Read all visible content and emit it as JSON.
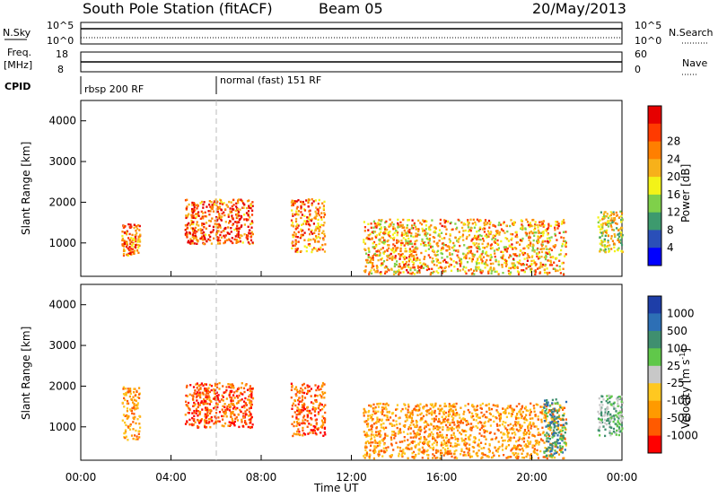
{
  "header": {
    "station": "South Pole Station (fitACF)",
    "beam": "Beam 05",
    "date": "20/May/2013"
  },
  "top_panels": {
    "nsky_label": "N.Sky",
    "nsky_ticks": [
      "10^5",
      "10^0"
    ],
    "nsearch_label": "N.Search",
    "nsearch_ticks": [
      "10^5",
      "10^0"
    ],
    "freq_label_1": "Freq.",
    "freq_label_2": "[MHz]",
    "freq_ticks": [
      "18",
      "8"
    ],
    "nave_label": "Nave",
    "nave_ticks": [
      "60",
      "0"
    ],
    "cpid_label": "CPID",
    "cpid_segments": [
      {
        "label": "rbsp 200 RF",
        "start_hour": 0
      },
      {
        "label": "normal (fast) 151 RF",
        "start_hour": 6
      }
    ]
  },
  "colors": {
    "power_scale": [
      "#0000ff",
      "#2a4fb8",
      "#3d9a6e",
      "#7fd04a",
      "#f3f318",
      "#f7b11a",
      "#ff7f00",
      "#ff3a00",
      "#e60000"
    ],
    "velocity_scale": [
      "#1e3ea8",
      "#2d6fb5",
      "#3f8f6f",
      "#60c84a",
      "#c8c8c8",
      "#ffc820",
      "#ff9a00",
      "#ff5a00",
      "#ff0000"
    ]
  },
  "chart_data": [
    {
      "type": "heatmap",
      "panel": "power",
      "ylabel": "Slant Range [km]",
      "yticks": [
        "1000",
        "2000",
        "3000",
        "4000"
      ],
      "ylim": [
        180,
        4500
      ],
      "xlim_hours": [
        0,
        24
      ],
      "colorbar_label": "Power [dB]",
      "colorbar_ticks": [
        "4",
        "8",
        "12",
        "16",
        "20",
        "24",
        "28"
      ],
      "echo_regions": [
        {
          "t_start": 1.8,
          "t_end": 2.6,
          "r_low": 700,
          "r_high": 1500,
          "level": 0.8
        },
        {
          "t_start": 4.6,
          "t_end": 7.6,
          "r_low": 1000,
          "r_high": 2100,
          "level": 0.85
        },
        {
          "t_start": 9.3,
          "t_end": 10.8,
          "r_low": 800,
          "r_high": 2100,
          "level": 0.75
        },
        {
          "t_start": 12.5,
          "t_end": 21.5,
          "r_low": 250,
          "r_high": 1600,
          "level": 0.65
        },
        {
          "t_start": 22.9,
          "t_end": 24.0,
          "r_low": 800,
          "r_high": 1800,
          "level": 0.5
        }
      ]
    },
    {
      "type": "heatmap",
      "panel": "velocity",
      "xlabel": "Time UT",
      "ylabel": "Slant Range [km]",
      "yticks": [
        "1000",
        "2000",
        "3000",
        "4000"
      ],
      "xticks": [
        "00:00",
        "04:00",
        "08:00",
        "12:00",
        "16:00",
        "20:00",
        "00:00"
      ],
      "ylim": [
        180,
        4500
      ],
      "xlim_hours": [
        0,
        24
      ],
      "colorbar_label": "Velocity [m s",
      "colorbar_label_sup": "-1",
      "colorbar_label_end": "]",
      "colorbar_ticks": [
        "1000",
        "500",
        "100",
        "25",
        "-25",
        "-100",
        "-500",
        "-1000"
      ],
      "echo_regions": [
        {
          "t_start": 1.8,
          "t_end": 2.6,
          "r_low": 700,
          "r_high": 2000,
          "level": -0.6
        },
        {
          "t_start": 4.6,
          "t_end": 7.6,
          "r_low": 1000,
          "r_high": 2100,
          "level": -0.7
        },
        {
          "t_start": 9.3,
          "t_end": 10.8,
          "r_low": 800,
          "r_high": 2100,
          "level": -0.75
        },
        {
          "t_start": 12.5,
          "t_end": 21.5,
          "r_low": 250,
          "r_high": 1600,
          "level": -0.55
        },
        {
          "t_start": 20.5,
          "t_end": 21.5,
          "r_low": 300,
          "r_high": 1700,
          "level": 0.6
        },
        {
          "t_start": 22.9,
          "t_end": 24.0,
          "r_low": 800,
          "r_high": 1800,
          "level": 0.3
        }
      ]
    }
  ]
}
